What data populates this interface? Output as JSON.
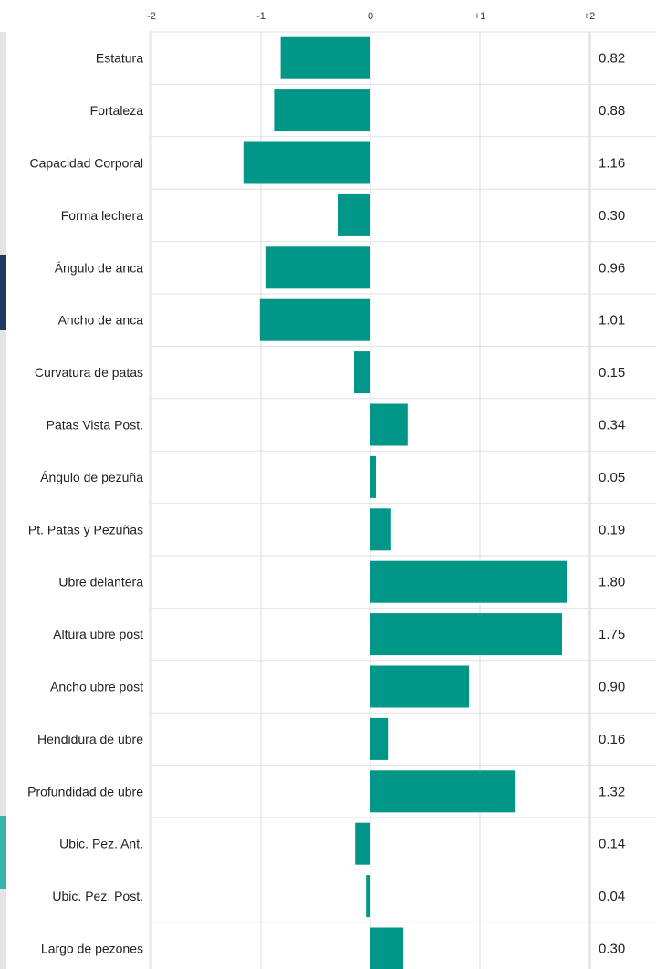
{
  "chart_data": {
    "type": "bar",
    "orientation": "horizontal",
    "title": "",
    "xlabel": "",
    "ylabel": "",
    "xlim": [
      -2,
      2
    ],
    "x_ticks": [
      {
        "value": -2,
        "label": "-2"
      },
      {
        "value": -1,
        "label": "-1"
      },
      {
        "value": 0,
        "label": "0"
      },
      {
        "value": 1,
        "label": "+1"
      },
      {
        "value": 2,
        "label": "+2"
      }
    ],
    "grid": true,
    "bar_color": "#009688",
    "categories": [
      "Estatura",
      "Fortaleza",
      "Capacidad Corporal",
      "Forma lechera",
      "Ángulo de anca",
      "Ancho de anca",
      "Curvatura de patas",
      "Patas Vista Post.",
      "Ángulo de pezuña",
      "Pt. Patas y Pezuñas",
      "Ubre delantera",
      "Altura ubre post",
      "Ancho ubre post",
      "Hendidura de ubre",
      "Profundidad de ubre",
      "Ubic. Pez. Ant.",
      "Ubic. Pez. Post.",
      "Largo de pezones"
    ],
    "values": [
      -0.82,
      -0.88,
      -1.16,
      -0.3,
      -0.96,
      -1.01,
      -0.15,
      0.34,
      0.05,
      0.19,
      1.8,
      1.75,
      0.9,
      0.16,
      1.32,
      -0.14,
      -0.04,
      0.3
    ],
    "value_labels": [
      "0.82",
      "0.88",
      "1.16",
      "0.30",
      "0.96",
      "1.01",
      "0.15",
      "0.34",
      "0.05",
      "0.19",
      "1.80",
      "1.75",
      "0.90",
      "0.16",
      "1.32",
      "0.14",
      "0.04",
      "0.30"
    ]
  },
  "side_strip_colors": {
    "base": "#e4e4e4",
    "dark": "#1e3a5f",
    "teal": "#3bb3ad"
  }
}
